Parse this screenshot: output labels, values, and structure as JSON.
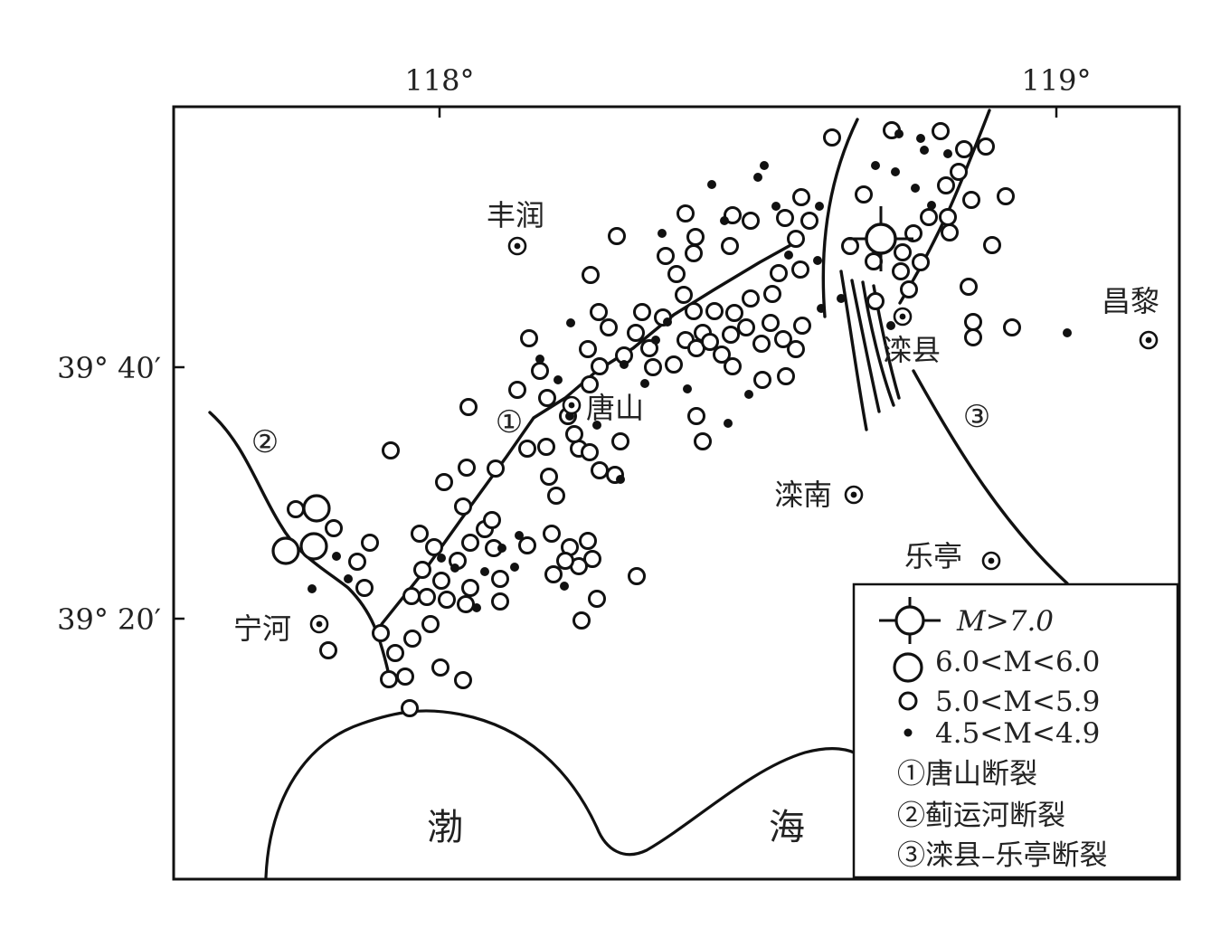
{
  "map": {
    "axes": {
      "top_ticks": [
        "118°",
        "119°"
      ],
      "left_ticks": [
        "39° 40′",
        "39° 20′"
      ]
    },
    "cities": [
      {
        "id": "fengrun",
        "name": "丰润"
      },
      {
        "id": "tangshan",
        "name": "唐山"
      },
      {
        "id": "luanxian",
        "name": "滦县"
      },
      {
        "id": "changli",
        "name": "昌黎"
      },
      {
        "id": "luannan",
        "name": "滦南"
      },
      {
        "id": "laoting",
        "name": "乐亭"
      },
      {
        "id": "ninghe",
        "name": "宁河"
      }
    ],
    "fault_numbers": [
      "①",
      "②",
      "③"
    ],
    "sea_labels": [
      "渤",
      "海"
    ],
    "legend": {
      "m7": "M>7.0",
      "m6": "6.0<M<6.0",
      "m5": "5.0<M<5.9",
      "m45": "4.5<M<4.9",
      "fault1": "①唐山断裂",
      "fault2": "②蓟运河断裂",
      "fault3": "③滦县–乐亭断裂"
    },
    "colors": {
      "ink": "#111111",
      "background": "#ffffff"
    },
    "symbols": {
      "city": "circled-dot-icon",
      "m7": "crosshair-circle-icon",
      "m6": "large-open-circle-icon",
      "m5": "small-open-circle-icon",
      "m45": "filled-dot-icon"
    }
  }
}
